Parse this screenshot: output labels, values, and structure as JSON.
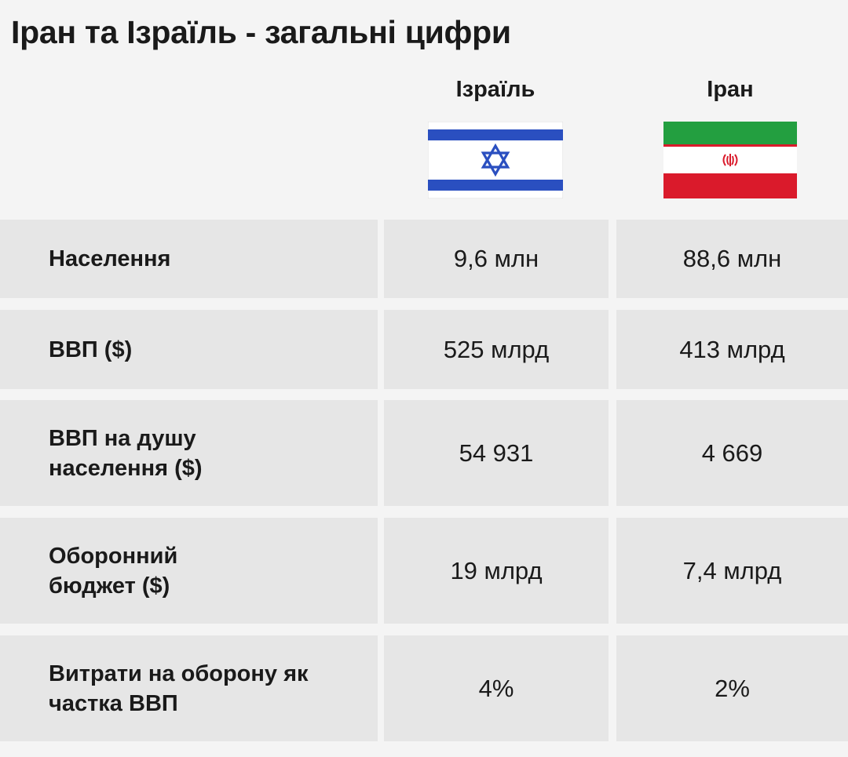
{
  "title": "Іран та Ізраїль - загальні цифри",
  "columns": {
    "israel": "Ізраїль",
    "iran": "Іран"
  },
  "colors": {
    "israel_blue": "#2a4fc0",
    "iran_green": "#239f40",
    "iran_red": "#da1a2b",
    "cell_bg": "#e6e6e6",
    "page_bg": "#f4f4f4"
  },
  "chart_data": {
    "type": "table",
    "title": "Іран та Ізраїль - загальні цифри",
    "columns": [
      "Ізраїль",
      "Іран"
    ],
    "rows": [
      {
        "label": "Населення",
        "israel": "9,6 млн",
        "iran": "88,6 млн"
      },
      {
        "label": "ВВП ($)",
        "israel": "525 млрд",
        "iran": "413 млрд"
      },
      {
        "label": "ВВП на душу населення ($)",
        "israel": "54 931",
        "iran": "4 669"
      },
      {
        "label": "Оборонний бюджет ($)",
        "israel": "19 млрд",
        "iran": "7,4 млрд"
      },
      {
        "label": "Витрати на оборону як частка ВВП",
        "israel": "4%",
        "iran": "2%"
      }
    ]
  }
}
